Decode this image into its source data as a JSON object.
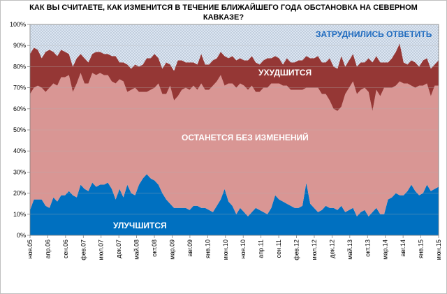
{
  "chart_data": {
    "type": "area",
    "stacked": "percent",
    "title_line1": "КАК ВЫ СЧИТАЕТЕ, КАК ИЗМЕНИТСЯ В ТЕЧЕНИЕ БЛИЖАЙШЕГО ГОДА ОБСТАНОВКА НА СЕВЕРНОМ",
    "title_line2": "КАВКАЗЕ?",
    "ylim": [
      0,
      100
    ],
    "y_ticks": [
      "0%",
      "10%",
      "20%",
      "30%",
      "40%",
      "50%",
      "60%",
      "70%",
      "80%",
      "90%",
      "100%"
    ],
    "x_tick_labels": [
      "ноя.05",
      "апр.06",
      "сен.06",
      "фев.07",
      "июл.07",
      "дек.07",
      "май.08",
      "окт.08",
      "мар.09",
      "авг.09",
      "янв.10",
      "июн.10",
      "ноя.10",
      "апр.11",
      "сен.11",
      "фев.12",
      "июл.12",
      "дек.12",
      "май.13",
      "окт.13",
      "мар.14",
      "авг.14",
      "янв.15",
      "июн.15"
    ],
    "grid": true,
    "series": [
      {
        "name": "УЛУЧШИТСЯ",
        "color": "#0070c0",
        "values": [
          12,
          17,
          17,
          17,
          14,
          13,
          18,
          16,
          19,
          19,
          21,
          19,
          18,
          24,
          22,
          21,
          25,
          23,
          24,
          24,
          25,
          22,
          17,
          22,
          18,
          24,
          20,
          19,
          24,
          27,
          29,
          27,
          26,
          24,
          20,
          17,
          15,
          13,
          13,
          13,
          13,
          12,
          14,
          14,
          13,
          13,
          12,
          11,
          14,
          17,
          22,
          16,
          14,
          10,
          13,
          11,
          9,
          11,
          13,
          12,
          11,
          10,
          13,
          19,
          17,
          16,
          15,
          14,
          13,
          13,
          14,
          25,
          15,
          13,
          11,
          12,
          14,
          13,
          13,
          12,
          14,
          11,
          12,
          13,
          9,
          11,
          12,
          9,
          11,
          13,
          10,
          10,
          17,
          18,
          20,
          19,
          19,
          21,
          24,
          21,
          19,
          20,
          24,
          21,
          22,
          23
        ]
      },
      {
        "name": "ОСТАНЕТСЯ  БЕЗ ИЗМЕНЕНИЙ",
        "color": "#d99694",
        "values": [
          55,
          53,
          54,
          53,
          54,
          57,
          54,
          55,
          56,
          56,
          55,
          49,
          54,
          53,
          50,
          51,
          52,
          53,
          53,
          52,
          51,
          51,
          55,
          52,
          55,
          44,
          49,
          51,
          44,
          41,
          39,
          42,
          44,
          48,
          47,
          50,
          56,
          51,
          53,
          56,
          57,
          57,
          57,
          55,
          59,
          56,
          57,
          60,
          59,
          59,
          49,
          56,
          58,
          60,
          59,
          60,
          60,
          60,
          55,
          56,
          59,
          60,
          59,
          53,
          55,
          55,
          56,
          55,
          56,
          56,
          55,
          45,
          55,
          57,
          59,
          55,
          53,
          51,
          47,
          47,
          47,
          56,
          58,
          60,
          58,
          58,
          58,
          59,
          48,
          56,
          56,
          60,
          53,
          52,
          51,
          54,
          53,
          51,
          47,
          49,
          52,
          51,
          48,
          45,
          49,
          48
        ]
      },
      {
        "name": "УХУДШИТСЯ",
        "color": "#953735",
        "values": [
          19,
          19,
          17,
          14,
          19,
          18,
          15,
          14,
          13,
          12,
          10,
          12,
          12,
          9,
          12,
          10,
          9,
          11,
          10,
          10,
          10,
          12,
          13,
          8,
          9,
          13,
          10,
          11,
          12,
          13,
          16,
          15,
          16,
          12,
          12,
          15,
          10,
          14,
          17,
          14,
          12,
          13,
          11,
          12,
          14,
          12,
          12,
          12,
          11,
          11,
          14,
          12,
          13,
          13,
          12,
          12,
          14,
          14,
          14,
          13,
          13,
          14,
          12,
          13,
          12,
          10,
          13,
          13,
          13,
          14,
          14,
          15,
          14,
          14,
          15,
          15,
          15,
          20,
          20,
          20,
          24,
          13,
          13,
          13,
          13,
          13,
          12,
          16,
          23,
          16,
          16,
          12,
          12,
          14,
          16,
          18,
          10,
          9,
          12,
          12,
          9,
          12,
          12,
          13,
          10,
          12
        ]
      },
      {
        "name": "ЗАТРУДНИЛИСЬ  ОТВЕТИТЬ",
        "color": "#dce6f2",
        "values": [
          14,
          11,
          12,
          16,
          13,
          12,
          13,
          15,
          12,
          13,
          14,
          20,
          16,
          14,
          16,
          18,
          14,
          13,
          13,
          14,
          14,
          15,
          15,
          18,
          18,
          19,
          21,
          19,
          20,
          19,
          16,
          16,
          14,
          16,
          21,
          18,
          19,
          22,
          17,
          17,
          18,
          18,
          18,
          19,
          14,
          19,
          19,
          17,
          16,
          13,
          15,
          16,
          15,
          17,
          16,
          17,
          17,
          15,
          18,
          19,
          17,
          16,
          16,
          15,
          16,
          19,
          16,
          18,
          18,
          17,
          17,
          15,
          16,
          16,
          15,
          18,
          18,
          16,
          20,
          21,
          15,
          20,
          17,
          14,
          20,
          18,
          18,
          16,
          18,
          15,
          18,
          18,
          18,
          16,
          13,
          9,
          18,
          19,
          17,
          18,
          20,
          17,
          16,
          21,
          19,
          17
        ]
      }
    ]
  },
  "labels": {
    "improve": "УЛУЧШИТСЯ",
    "same": "ОСТАНЕТСЯ  БЕЗ ИЗМЕНЕНИЙ",
    "worse": "УХУДШИТСЯ",
    "unsure": "ЗАТРУДНИЛИСЬ  ОТВЕТИТЬ"
  }
}
